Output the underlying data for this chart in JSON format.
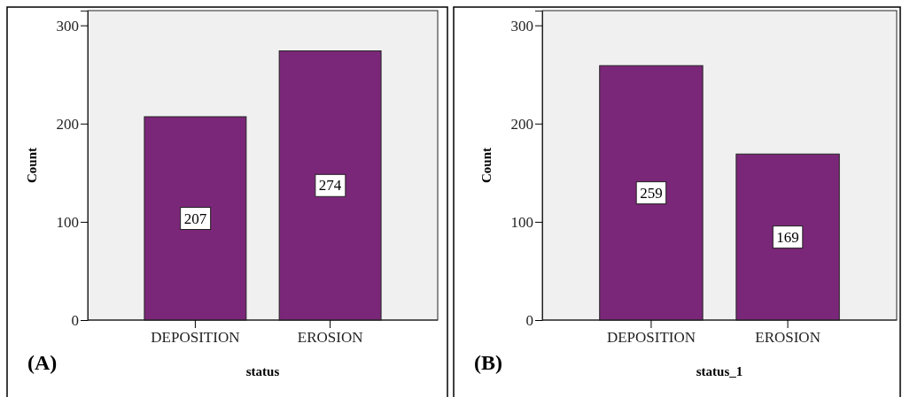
{
  "chart_data": [
    {
      "type": "bar",
      "categories": [
        "DEPOSITION",
        "EROSION"
      ],
      "values": [
        207,
        274
      ],
      "color": "#7b2779",
      "xlabel": "status",
      "ylabel": "Count",
      "ylim": [
        0,
        315
      ],
      "yticks": [
        0,
        100,
        200,
        300
      ],
      "data_labels": true,
      "annotations": [
        "(A)"
      ]
    },
    {
      "type": "bar",
      "categories": [
        "DEPOSITION",
        "EROSION"
      ],
      "values": [
        259,
        169
      ],
      "color": "#7b2779",
      "xlabel": "status_1",
      "ylabel": "Count",
      "ylim": [
        0,
        315
      ],
      "yticks": [
        0,
        100,
        200,
        300
      ],
      "data_labels": true,
      "annotations": [
        "(B)"
      ]
    }
  ]
}
